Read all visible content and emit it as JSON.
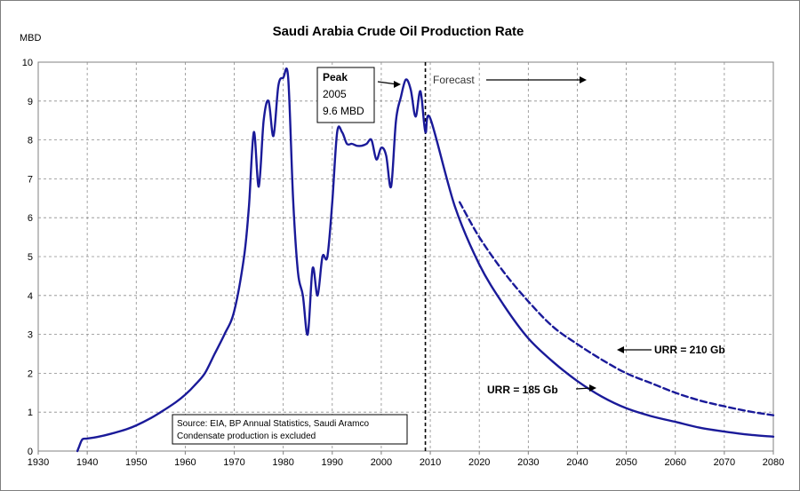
{
  "chart_data": {
    "type": "line",
    "title": "Saudi Arabia Crude Oil Production Rate",
    "ylabel": "MBD",
    "xlabel": "",
    "xlim": [
      1930,
      2080
    ],
    "ylim": [
      0,
      10
    ],
    "x_ticks": [
      "1930",
      "1940",
      "1950",
      "1960",
      "1970",
      "1980",
      "1990",
      "2000",
      "2010",
      "2020",
      "2030",
      "2040",
      "2050",
      "2060",
      "2070",
      "2080"
    ],
    "y_ticks": [
      "0",
      "1",
      "2",
      "3",
      "4",
      "5",
      "6",
      "7",
      "8",
      "9",
      "10"
    ],
    "grid": true,
    "series": [
      {
        "name": "",
        "color": "#1a1a99",
        "style": "solid",
        "points": [
          [
            1938,
            0
          ],
          [
            1938.3,
            0.1
          ],
          [
            1939,
            0.3
          ],
          [
            1940,
            0.32
          ],
          [
            1942,
            0.36
          ],
          [
            1945,
            0.45
          ],
          [
            1948,
            0.56
          ],
          [
            1950,
            0.66
          ],
          [
            1953,
            0.85
          ],
          [
            1955,
            1.0
          ],
          [
            1958,
            1.25
          ],
          [
            1960,
            1.45
          ],
          [
            1962,
            1.7
          ],
          [
            1964,
            2.0
          ],
          [
            1966,
            2.5
          ],
          [
            1968,
            3.0
          ],
          [
            1970,
            3.6
          ],
          [
            1972,
            5.0
          ],
          [
            1973,
            6.3
          ],
          [
            1974,
            8.2
          ],
          [
            1975,
            6.8
          ],
          [
            1976,
            8.5
          ],
          [
            1977,
            9.0
          ],
          [
            1978,
            8.1
          ],
          [
            1979,
            9.4
          ],
          [
            1980,
            9.6
          ],
          [
            1981,
            9.6
          ],
          [
            1982,
            6.5
          ],
          [
            1983,
            4.6
          ],
          [
            1984,
            4.0
          ],
          [
            1985,
            3.0
          ],
          [
            1986,
            4.7
          ],
          [
            1987,
            4.0
          ],
          [
            1988,
            5.0
          ],
          [
            1989,
            5.0
          ],
          [
            1990,
            6.4
          ],
          [
            1991,
            8.2
          ],
          [
            1992,
            8.2
          ],
          [
            1993,
            7.9
          ],
          [
            1994,
            7.9
          ],
          [
            1995,
            7.85
          ],
          [
            1996,
            7.85
          ],
          [
            1997,
            7.9
          ],
          [
            1998,
            8.0
          ],
          [
            1999,
            7.5
          ],
          [
            2000,
            7.8
          ],
          [
            2001,
            7.6
          ],
          [
            2002,
            6.8
          ],
          [
            2003,
            8.5
          ],
          [
            2004,
            9.1
          ],
          [
            2005,
            9.55
          ],
          [
            2006,
            9.3
          ],
          [
            2007,
            8.6
          ],
          [
            2008,
            9.25
          ],
          [
            2009,
            8.2
          ],
          [
            2010,
            8.55
          ],
          [
            2015,
            6.3
          ],
          [
            2020,
            4.8
          ],
          [
            2025,
            3.75
          ],
          [
            2030,
            2.9
          ],
          [
            2035,
            2.3
          ],
          [
            2040,
            1.8
          ],
          [
            2045,
            1.4
          ],
          [
            2050,
            1.1
          ],
          [
            2055,
            0.9
          ],
          [
            2060,
            0.75
          ],
          [
            2065,
            0.6
          ],
          [
            2070,
            0.5
          ],
          [
            2075,
            0.42
          ],
          [
            2080,
            0.37
          ]
        ]
      },
      {
        "name": "",
        "color": "#1a1a99",
        "style": "dashed",
        "points": [
          [
            2016,
            6.4
          ],
          [
            2020,
            5.5
          ],
          [
            2025,
            4.6
          ],
          [
            2030,
            3.85
          ],
          [
            2035,
            3.2
          ],
          [
            2040,
            2.75
          ],
          [
            2045,
            2.35
          ],
          [
            2050,
            2.0
          ],
          [
            2055,
            1.75
          ],
          [
            2060,
            1.5
          ],
          [
            2065,
            1.3
          ],
          [
            2070,
            1.15
          ],
          [
            2075,
            1.02
          ],
          [
            2080,
            0.92
          ]
        ]
      }
    ],
    "annotations": {
      "peak": [
        "Peak",
        "2005",
        "9.6 MBD"
      ],
      "forecast": "Forecast",
      "urr_210": "URR = 210 Gb",
      "urr_185": "URR = 185 Gb",
      "source": [
        "Source: EIA, BP Annual Statistics, Saudi Aramco",
        "Condensate production is excluded"
      ]
    },
    "forecast_start": 2009
  }
}
